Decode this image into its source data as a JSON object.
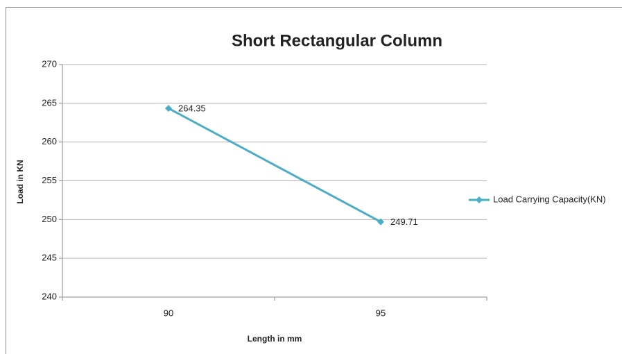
{
  "chart_data": {
    "type": "line",
    "title": "Short Rectangular Column",
    "x_label": "Length in mm",
    "y_label": "Load  in KN",
    "categories": [
      "90",
      "95"
    ],
    "series": [
      {
        "name": "Load Carrying Capacity(KN)",
        "color": "#4bacc6",
        "values": [
          264.35,
          249.71
        ]
      }
    ],
    "ylim": [
      240,
      270
    ],
    "yticks": [
      240,
      245,
      250,
      255,
      260,
      265,
      270
    ],
    "grid": true,
    "legend": "right",
    "data_labels": true
  }
}
